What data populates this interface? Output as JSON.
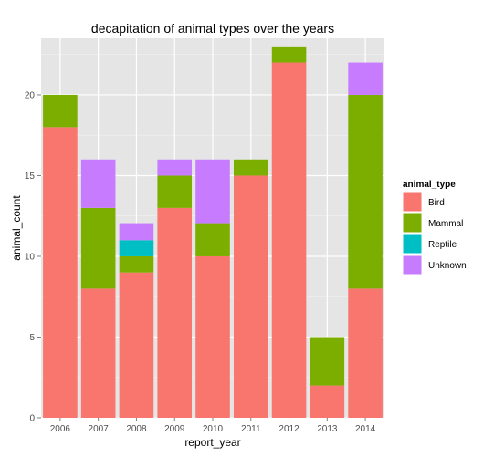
{
  "chart_data": {
    "type": "bar",
    "stacked": true,
    "title": "decapitation of animal types over the years",
    "xlabel": "report_year",
    "ylabel": "animal_count",
    "categories": [
      "2006",
      "2007",
      "2008",
      "2009",
      "2010",
      "2011",
      "2012",
      "2013",
      "2014"
    ],
    "ylim": [
      0,
      23.5
    ],
    "yticks": [
      0,
      5,
      10,
      15,
      20
    ],
    "grid": true,
    "legend": {
      "title": "animal_type",
      "placement": "right"
    },
    "series": [
      {
        "name": "Bird",
        "color": "#F8766D",
        "values": [
          18,
          8,
          9,
          13,
          10,
          15,
          22,
          2,
          8
        ]
      },
      {
        "name": "Mammal",
        "color": "#7CAE00",
        "values": [
          2,
          5,
          1,
          2,
          2,
          1,
          1,
          3,
          12
        ]
      },
      {
        "name": "Reptile",
        "color": "#00BFC4",
        "values": [
          0,
          0,
          1,
          0,
          0,
          0,
          0,
          0,
          0
        ]
      },
      {
        "name": "Unknown",
        "color": "#C77CFF",
        "values": [
          0,
          3,
          1,
          1,
          4,
          0,
          0,
          0,
          2
        ]
      }
    ]
  }
}
